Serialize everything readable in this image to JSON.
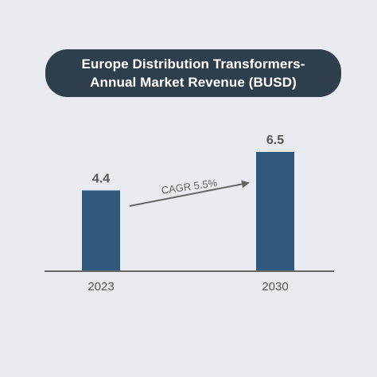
{
  "title": {
    "line1": "Europe Distribution Transformers-",
    "line2": "Annual Market Revenue (BUSD)"
  },
  "chart_data": {
    "type": "bar",
    "title": "Europe Distribution Transformers-Annual Market Revenue (BUSD)",
    "categories": [
      "2023",
      "2030"
    ],
    "values": [
      4.4,
      6.5
    ],
    "value_labels": [
      "4.4",
      "6.5"
    ],
    "ylim": [
      0,
      6.5
    ],
    "grid": false,
    "legend": "none",
    "annotation": {
      "text": "CAGR 5.5%",
      "from": "2023",
      "to": "2030"
    },
    "colors": {
      "bar": "#2f5a7d",
      "axis": "#666666",
      "arrow": "#666666",
      "value_label": "#555555",
      "tick_label": "#555555",
      "annotation_text": "#666666",
      "title_bg": "#2f3e4b",
      "title_text": "#ffffff",
      "background": "#e9ebf1"
    }
  }
}
